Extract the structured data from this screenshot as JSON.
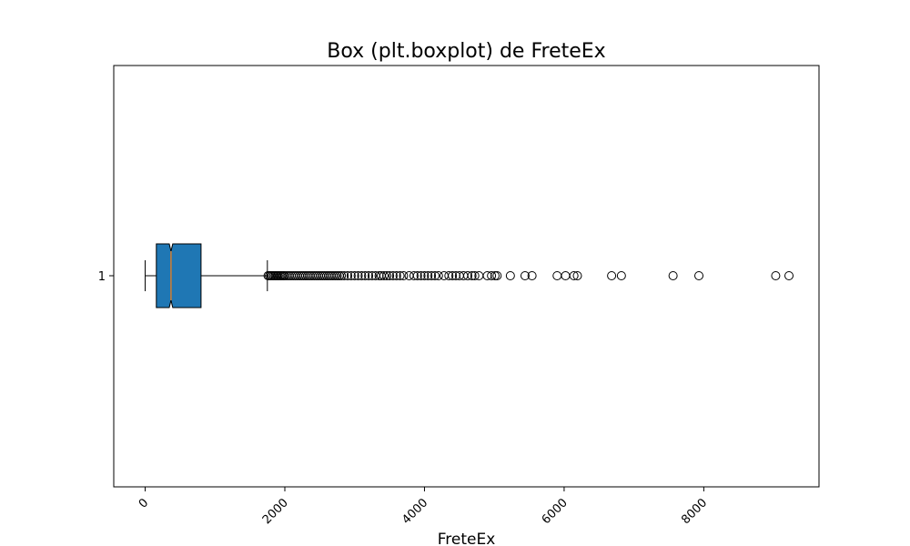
{
  "chart_data": {
    "type": "boxplot",
    "orientation": "horizontal",
    "notched": true,
    "title": "Box (plt.boxplot) de FreteEx",
    "xlabel": "FreteEx",
    "ylabel": "",
    "xlim": [
      -450,
      9650
    ],
    "x_ticks": [
      0,
      2000,
      4000,
      6000,
      8000
    ],
    "x_tick_labels": [
      "0",
      "2000",
      "4000",
      "6000",
      "8000"
    ],
    "x_tick_rotation": 45,
    "y_ticks": [
      1
    ],
    "y_tick_labels": [
      "1"
    ],
    "grid": false,
    "legend": "none",
    "colors": {
      "box_fill": "#1f77b4",
      "median": "#ff7f0e",
      "edge": "#000000",
      "flier_edge": "#000000"
    },
    "series": [
      {
        "position": 1,
        "whisker_low": 0,
        "q1": 160,
        "median": 370,
        "q3": 800,
        "whisker_high": 1750,
        "notch_low": 345,
        "notch_high": 395,
        "outliers": [
          1760,
          1780,
          1800,
          1820,
          1840,
          1860,
          1880,
          1900,
          1920,
          1940,
          1960,
          1980,
          2000,
          2030,
          2060,
          2090,
          2120,
          2150,
          2180,
          2210,
          2240,
          2270,
          2300,
          2330,
          2360,
          2390,
          2420,
          2450,
          2480,
          2510,
          2540,
          2570,
          2600,
          2630,
          2660,
          2690,
          2720,
          2750,
          2780,
          2810,
          2850,
          2900,
          2950,
          3000,
          3050,
          3100,
          3150,
          3200,
          3250,
          3300,
          3350,
          3380,
          3420,
          3460,
          3500,
          3550,
          3600,
          3650,
          3700,
          3780,
          3850,
          3900,
          3950,
          4000,
          4050,
          4100,
          4150,
          4200,
          4280,
          4350,
          4400,
          4450,
          4500,
          4560,
          4620,
          4680,
          4720,
          4780,
          4900,
          4960,
          5010,
          5040,
          5230,
          5440,
          5540,
          5900,
          6020,
          6140,
          6190,
          6680,
          6820,
          7560,
          7930,
          9030,
          9220
        ]
      }
    ]
  }
}
